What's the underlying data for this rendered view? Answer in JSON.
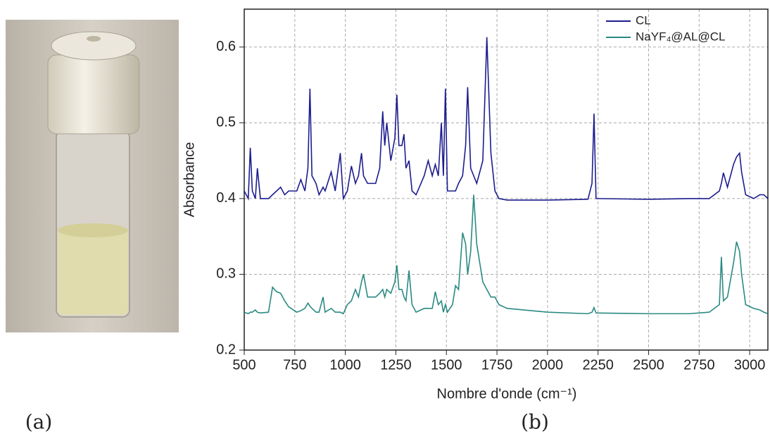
{
  "panel_labels": [
    "(a)",
    "(b)"
  ],
  "chart_data": {
    "type": "line",
    "xlabel": "Nombre d'onde (cm⁻¹)",
    "ylabel": "Absorbance",
    "xlim": [
      500,
      3090
    ],
    "ylim": [
      0.2,
      0.65
    ],
    "xticks": [
      500,
      750,
      1000,
      1250,
      1500,
      1750,
      2000,
      2250,
      2500,
      2750,
      3000
    ],
    "yticks": [
      0.2,
      0.3,
      0.4,
      0.5,
      0.6
    ],
    "grid": true,
    "legend": "upper right",
    "x": [
      500,
      520,
      530,
      540,
      555,
      565,
      580,
      620,
      640,
      660,
      680,
      700,
      720,
      760,
      780,
      800,
      815,
      825,
      835,
      855,
      870,
      890,
      900,
      930,
      950,
      975,
      990,
      1010,
      1030,
      1050,
      1065,
      1080,
      1090,
      1110,
      1150,
      1170,
      1185,
      1195,
      1205,
      1225,
      1245,
      1255,
      1265,
      1280,
      1290,
      1300,
      1315,
      1330,
      1350,
      1390,
      1410,
      1430,
      1445,
      1460,
      1475,
      1485,
      1495,
      1505,
      1530,
      1545,
      1560,
      1580,
      1595,
      1605,
      1620,
      1635,
      1650,
      1680,
      1700,
      1720,
      1740,
      1760,
      1800,
      2000,
      2200,
      2220,
      2230,
      2240,
      2500,
      2700,
      2800,
      2850,
      2860,
      2870,
      2890,
      2920,
      2935,
      2950,
      2960,
      2980,
      3020,
      3050,
      3070,
      3090
    ],
    "series": [
      {
        "name": "CL",
        "color": "#1c1c8f",
        "values": [
          0.41,
          0.4,
          0.467,
          0.41,
          0.4,
          0.44,
          0.4,
          0.4,
          0.405,
          0.41,
          0.415,
          0.405,
          0.41,
          0.41,
          0.425,
          0.41,
          0.44,
          0.545,
          0.43,
          0.42,
          0.405,
          0.415,
          0.41,
          0.435,
          0.41,
          0.46,
          0.4,
          0.41,
          0.443,
          0.42,
          0.43,
          0.46,
          0.43,
          0.42,
          0.42,
          0.44,
          0.515,
          0.47,
          0.5,
          0.45,
          0.48,
          0.537,
          0.47,
          0.47,
          0.485,
          0.44,
          0.45,
          0.41,
          0.405,
          0.43,
          0.45,
          0.43,
          0.445,
          0.43,
          0.5,
          0.43,
          0.545,
          0.41,
          0.41,
          0.41,
          0.42,
          0.43,
          0.47,
          0.547,
          0.44,
          0.43,
          0.42,
          0.45,
          0.613,
          0.46,
          0.41,
          0.4,
          0.398,
          0.398,
          0.399,
          0.42,
          0.512,
          0.4,
          0.399,
          0.4,
          0.4,
          0.41,
          0.42,
          0.434,
          0.415,
          0.445,
          0.455,
          0.46,
          0.435,
          0.405,
          0.4,
          0.405,
          0.405,
          0.4
        ]
      },
      {
        "name": "NaYF₄@AL@CL",
        "color": "#2a8a82",
        "values": [
          0.25,
          0.248,
          0.25,
          0.25,
          0.253,
          0.25,
          0.249,
          0.25,
          0.283,
          0.277,
          0.275,
          0.265,
          0.257,
          0.25,
          0.252,
          0.255,
          0.262,
          0.258,
          0.255,
          0.25,
          0.25,
          0.27,
          0.25,
          0.255,
          0.25,
          0.25,
          0.248,
          0.26,
          0.265,
          0.28,
          0.27,
          0.29,
          0.3,
          0.27,
          0.27,
          0.275,
          0.28,
          0.27,
          0.28,
          0.275,
          0.29,
          0.312,
          0.28,
          0.28,
          0.27,
          0.265,
          0.305,
          0.26,
          0.25,
          0.255,
          0.255,
          0.255,
          0.277,
          0.26,
          0.265,
          0.25,
          0.26,
          0.25,
          0.26,
          0.285,
          0.28,
          0.355,
          0.34,
          0.3,
          0.33,
          0.405,
          0.34,
          0.29,
          0.28,
          0.27,
          0.27,
          0.26,
          0.255,
          0.25,
          0.248,
          0.25,
          0.256,
          0.249,
          0.248,
          0.248,
          0.25,
          0.26,
          0.323,
          0.265,
          0.27,
          0.315,
          0.343,
          0.33,
          0.3,
          0.26,
          0.255,
          0.253,
          0.25,
          0.248
        ]
      }
    ]
  }
}
